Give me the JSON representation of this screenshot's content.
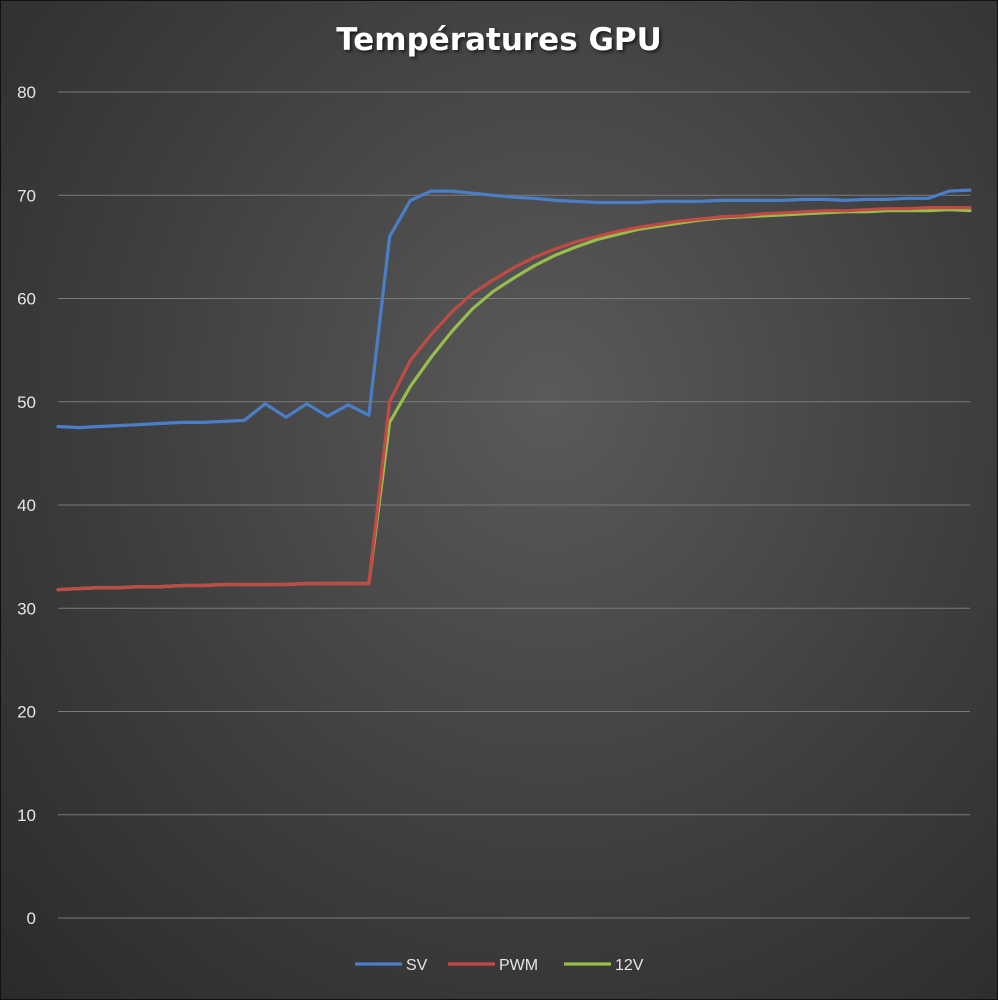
{
  "chart_data": {
    "type": "line",
    "title": "Températures GPU",
    "xlabel": "",
    "ylabel": "",
    "ylim": [
      0,
      80
    ],
    "yticks": [
      "0",
      "10",
      "20",
      "30",
      "40",
      "50",
      "60",
      "70",
      "80"
    ],
    "grid": true,
    "legend_position": "bottom",
    "colors": {
      "SV": "#4a7ec7",
      "PWM": "#c24a45",
      "12V": "#97bd4a"
    },
    "series": [
      {
        "name": "SV",
        "values": [
          47.6,
          47.5,
          47.6,
          47.7,
          47.8,
          47.9,
          48.0,
          48.0,
          48.1,
          48.2,
          49.8,
          48.5,
          49.8,
          48.6,
          49.7,
          48.7,
          66.0,
          69.5,
          70.4,
          70.4,
          70.2,
          70.0,
          69.8,
          69.7,
          69.5,
          69.4,
          69.3,
          69.3,
          69.3,
          69.4,
          69.4,
          69.4,
          69.5,
          69.5,
          69.5,
          69.5,
          69.6,
          69.6,
          69.5,
          69.6,
          69.6,
          69.7,
          69.7,
          70.4,
          70.5
        ]
      },
      {
        "name": "PWM",
        "values": [
          31.8,
          31.9,
          32.0,
          32.0,
          32.1,
          32.1,
          32.2,
          32.2,
          32.3,
          32.3,
          32.3,
          32.3,
          32.4,
          32.4,
          32.4,
          32.4,
          50.0,
          54.0,
          56.5,
          58.7,
          60.5,
          61.8,
          63.0,
          64.0,
          64.8,
          65.5,
          66.0,
          66.5,
          66.9,
          67.2,
          67.5,
          67.7,
          67.9,
          68.0,
          68.2,
          68.3,
          68.4,
          68.5,
          68.5,
          68.6,
          68.7,
          68.7,
          68.8,
          68.8,
          68.8
        ]
      },
      {
        "name": "12V",
        "values": [
          31.8,
          31.9,
          32.0,
          32.0,
          32.1,
          32.1,
          32.2,
          32.2,
          32.3,
          32.3,
          32.3,
          32.3,
          32.4,
          32.4,
          32.4,
          32.4,
          48.0,
          51.5,
          54.3,
          56.8,
          59.0,
          60.7,
          62.0,
          63.2,
          64.2,
          65.0,
          65.7,
          66.2,
          66.7,
          67.0,
          67.3,
          67.6,
          67.8,
          67.9,
          68.0,
          68.1,
          68.2,
          68.3,
          68.4,
          68.4,
          68.5,
          68.5,
          68.5,
          68.6,
          68.5
        ]
      }
    ]
  }
}
